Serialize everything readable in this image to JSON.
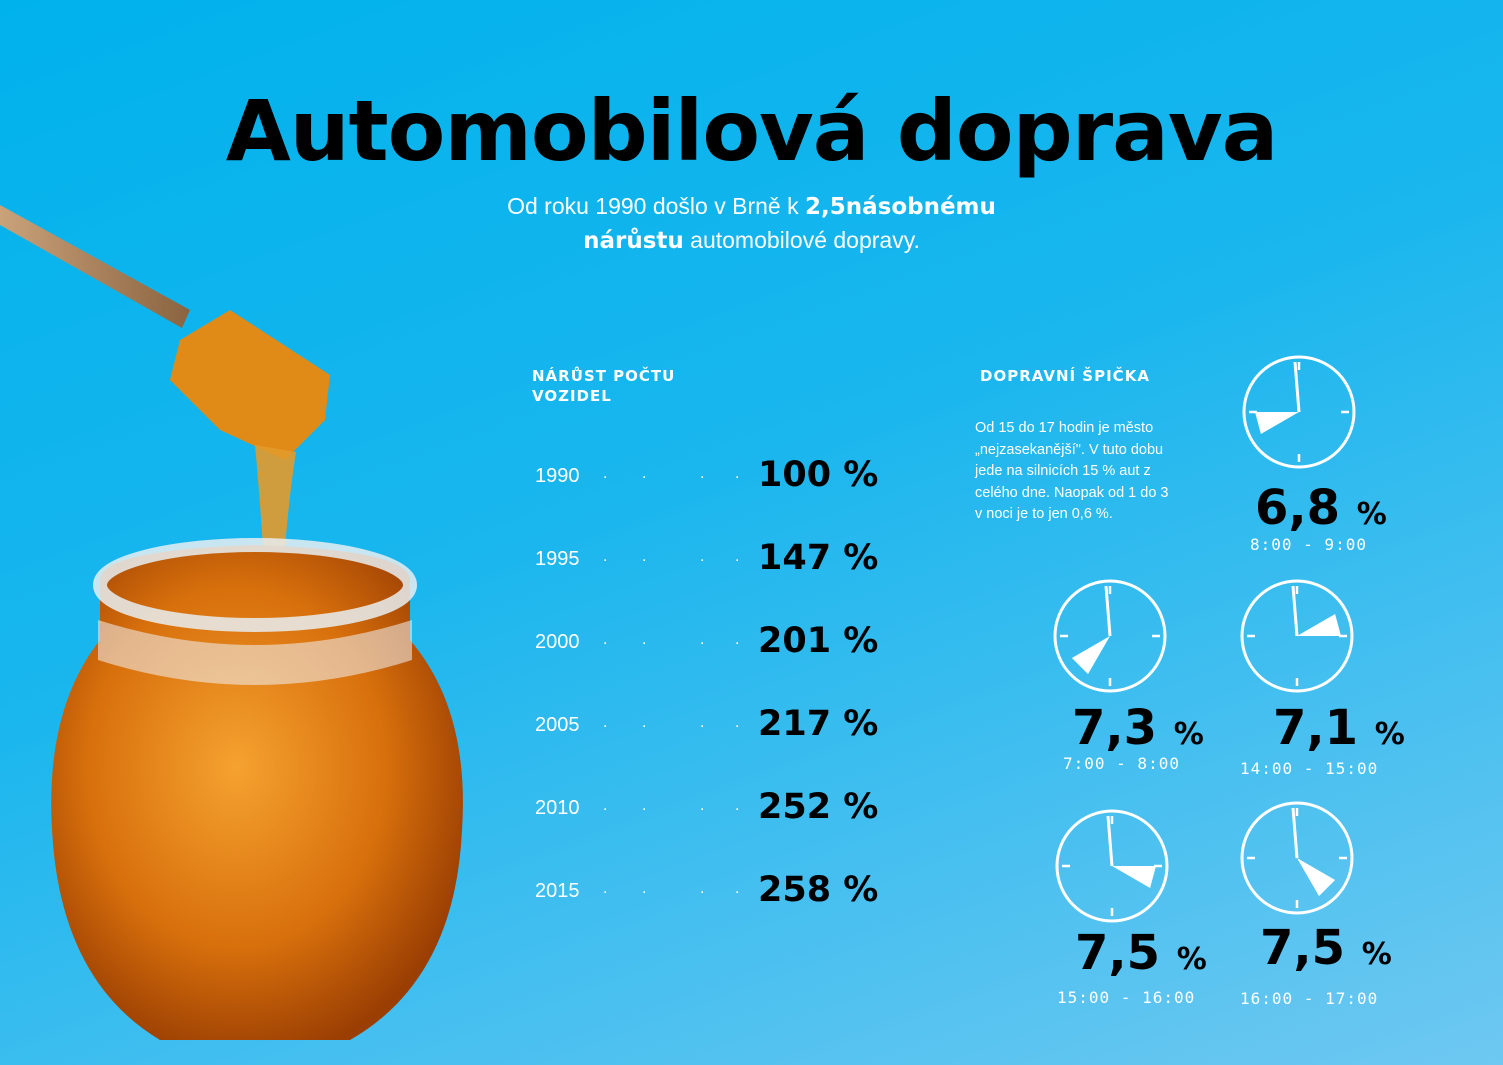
{
  "title": "Automobilová doprava",
  "subtitle": {
    "line1_pre": "Od roku 1990 došlo v Brně k ",
    "line1_bold": "2,5násobnému",
    "line2_bold": "nárůstu",
    "line2_post": " automobilové dopravy."
  },
  "growth": {
    "heading_line1": "NÁRŮST POČTU",
    "heading_line2": "VOZIDEL"
  },
  "peak": {
    "heading": "DOPRAVNÍ ŠPIČKA",
    "description": "Od 15 do 17 hodin je město „nejzasekanější\". V tuto dobu jede na silnicích 15 % aut z celého dne. Naopak od 1 do 3 v noci je to jen 0,6 %."
  },
  "colors": {
    "background": "#00b2ec",
    "text": "#000000",
    "accent": "#ffffff"
  },
  "chart_data": [
    {
      "type": "table",
      "title": "NÁRŮST POČTU VOZIDEL",
      "categories": [
        "1990",
        "1995",
        "2000",
        "2005",
        "2010",
        "2015"
      ],
      "values": [
        100,
        147,
        201,
        217,
        252,
        258
      ],
      "labels": [
        "100 %",
        "147 %",
        "201 %",
        "217 %",
        "252 %",
        "258 %"
      ],
      "unit": "%"
    },
    {
      "type": "table",
      "title": "DOPRAVNÍ ŠPIČKA",
      "items": [
        {
          "time": "8:00 - 9:00",
          "start_hour": 8,
          "value_text": "6,8",
          "unit": "%",
          "value": 6.8
        },
        {
          "time": "7:00 - 8:00",
          "start_hour": 7,
          "value_text": "7,3",
          "unit": "%",
          "value": 7.3
        },
        {
          "time": "14:00 - 15:00",
          "start_hour": 14,
          "value_text": "7,1",
          "unit": "%",
          "value": 7.1
        },
        {
          "time": "15:00 - 16:00",
          "start_hour": 15,
          "value_text": "7,5",
          "unit": "%",
          "value": 7.5
        },
        {
          "time": "16:00 - 17:00",
          "start_hour": 16,
          "value_text": "7,5",
          "unit": "%",
          "value": 7.5
        }
      ]
    }
  ]
}
